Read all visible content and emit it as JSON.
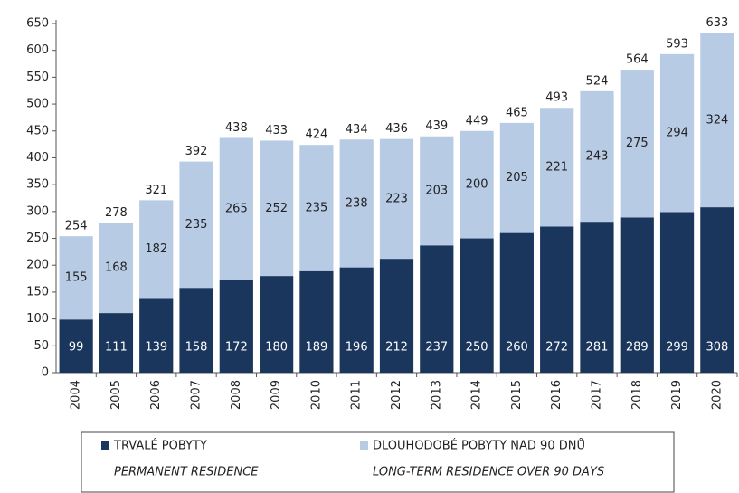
{
  "chart_data": {
    "type": "bar",
    "stacked": true,
    "categories": [
      "2004",
      "2005",
      "2006",
      "2007",
      "2008",
      "2009",
      "2010",
      "2011",
      "2012",
      "2013",
      "2014",
      "2015",
      "2016",
      "2017",
      "2018",
      "2019",
      "2020"
    ],
    "series": [
      {
        "name": "TRVALÉ POBYTY",
        "name_en": "PERMANENT RESIDENCE",
        "color": "#1b365d",
        "values": [
          99,
          111,
          139,
          158,
          172,
          180,
          189,
          196,
          212,
          237,
          250,
          260,
          272,
          281,
          289,
          299,
          308
        ]
      },
      {
        "name": "DLOUHODOBÉ POBYTY NAD 90 DNŮ",
        "name_en": "LONG-TERM RESIDENCE OVER 90 DAYS",
        "color": "#b7cbe5",
        "values": [
          155,
          168,
          182,
          235,
          265,
          252,
          235,
          238,
          223,
          203,
          200,
          205,
          221,
          243,
          275,
          294,
          324
        ]
      }
    ],
    "totals": [
      254,
      278,
      321,
      392,
      438,
      433,
      424,
      434,
      436,
      439,
      449,
      465,
      493,
      524,
      564,
      593,
      633
    ],
    "ylim": [
      0,
      650
    ],
    "yticks": [
      0,
      50,
      100,
      150,
      200,
      250,
      300,
      350,
      400,
      450,
      500,
      550,
      600,
      650
    ]
  }
}
